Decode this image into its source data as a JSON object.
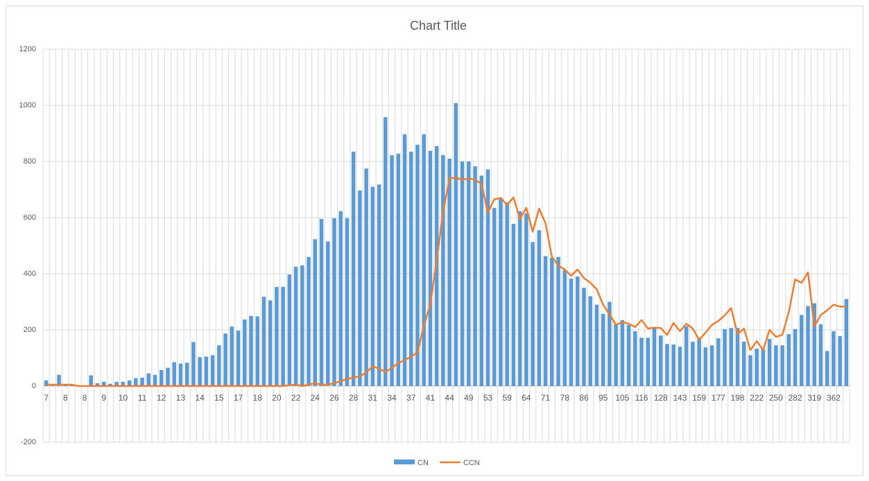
{
  "chart_data": {
    "type": "bar_line",
    "title": "Chart Title",
    "categories": [
      "7",
      null,
      null,
      "8",
      null,
      null,
      "8",
      null,
      null,
      "9",
      null,
      null,
      "10",
      null,
      null,
      "11",
      null,
      null,
      "12",
      null,
      null,
      "13",
      null,
      null,
      "14",
      null,
      null,
      "15",
      null,
      null,
      "17",
      null,
      null,
      "18",
      null,
      null,
      "20",
      null,
      null,
      "22",
      null,
      null,
      "24",
      null,
      null,
      "26",
      null,
      null,
      "28",
      null,
      null,
      "31",
      null,
      null,
      "34",
      null,
      null,
      "37",
      null,
      null,
      "41",
      null,
      null,
      "44",
      null,
      null,
      "49",
      null,
      null,
      "53",
      null,
      null,
      "59",
      null,
      null,
      "64",
      null,
      null,
      "71",
      null,
      null,
      "78",
      null,
      null,
      "86",
      null,
      null,
      "95",
      null,
      null,
      "105",
      null,
      null,
      "116",
      null,
      null,
      "128",
      null,
      null,
      "143",
      null,
      null,
      "159",
      null,
      null,
      "177",
      null,
      null,
      "198",
      null,
      null,
      "222",
      null,
      null,
      "250",
      null,
      null,
      "282",
      null,
      null,
      "319",
      null,
      null,
      "362",
      null,
      null
    ],
    "series": [
      {
        "name": "CN",
        "type": "bar",
        "color": "#5b9bd5",
        "values": [
          20,
          5,
          40,
          3,
          5,
          0,
          0,
          38,
          10,
          15,
          8,
          15,
          15,
          20,
          28,
          30,
          45,
          40,
          57,
          65,
          85,
          80,
          83,
          157,
          103,
          105,
          110,
          145,
          187,
          212,
          197,
          237,
          250,
          248,
          318,
          305,
          353,
          353,
          397,
          425,
          430,
          460,
          523,
          595,
          515,
          598,
          623,
          598,
          835,
          697,
          775,
          710,
          718,
          958,
          822,
          828,
          897,
          835,
          860,
          897,
          838,
          855,
          823,
          810,
          1008,
          800,
          800,
          783,
          750,
          772,
          635,
          670,
          655,
          578,
          623,
          615,
          513,
          555,
          463,
          457,
          460,
          413,
          383,
          390,
          350,
          320,
          290,
          257,
          300,
          220,
          235,
          218,
          195,
          172,
          172,
          210,
          180,
          150,
          148,
          140,
          213,
          158,
          172,
          138,
          145,
          170,
          203,
          207,
          207,
          158,
          110,
          133,
          130,
          168,
          145,
          145,
          185,
          203,
          253,
          285,
          295,
          220,
          125,
          195,
          178,
          310
        ]
      },
      {
        "name": "CCN",
        "type": "line",
        "color": "#ed7d31",
        "values": [
          5,
          5,
          5,
          5,
          5,
          0,
          0,
          0,
          0,
          0,
          0,
          0,
          0,
          0,
          0,
          0,
          0,
          0,
          0,
          0,
          0,
          0,
          0,
          0,
          0,
          0,
          0,
          0,
          0,
          0,
          0,
          0,
          0,
          0,
          0,
          0,
          0,
          0,
          3,
          5,
          0,
          5,
          10,
          5,
          5,
          10,
          18,
          25,
          30,
          35,
          48,
          70,
          62,
          50,
          65,
          82,
          92,
          105,
          120,
          215,
          290,
          450,
          620,
          740,
          742,
          735,
          740,
          735,
          720,
          618,
          665,
          670,
          645,
          672,
          595,
          635,
          550,
          632,
          580,
          460,
          430,
          415,
          393,
          415,
          385,
          368,
          345,
          290,
          255,
          218,
          228,
          222,
          210,
          235,
          205,
          208,
          207,
          182,
          225,
          195,
          222,
          205,
          165,
          190,
          218,
          232,
          252,
          278,
          185,
          205,
          128,
          160,
          128,
          200,
          175,
          183,
          263,
          380,
          368,
          405,
          213,
          253,
          270,
          290,
          283,
          283
        ]
      }
    ],
    "ylim": [
      -200,
      1200
    ],
    "yticks": [
      -200,
      0,
      200,
      400,
      600,
      800,
      1000,
      1200
    ],
    "grid": true,
    "x_grid": true,
    "legend": "bottom"
  }
}
